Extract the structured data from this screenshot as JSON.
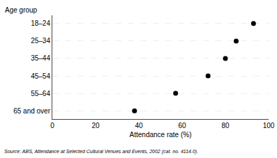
{
  "chart_data": {
    "type": "dot",
    "orientation": "horizontal",
    "categories": [
      "18–24",
      "25–34",
      "35–44",
      "45–54",
      "55–64",
      "65 and over"
    ],
    "values": [
      93,
      85,
      80,
      72,
      57,
      38
    ],
    "color": "#000000",
    "marker": "circle",
    "xlabel": "Attendance rate (%)",
    "ylabel": "Age group",
    "xlim": [
      0,
      100
    ],
    "xticks": [
      0,
      20,
      40,
      60,
      80,
      100
    ],
    "grid": true,
    "annotations": [
      "Source: ABS, Attendance at Selected Cultural Venues and Events, 2002 (cat. no. 4114.0)."
    ]
  }
}
